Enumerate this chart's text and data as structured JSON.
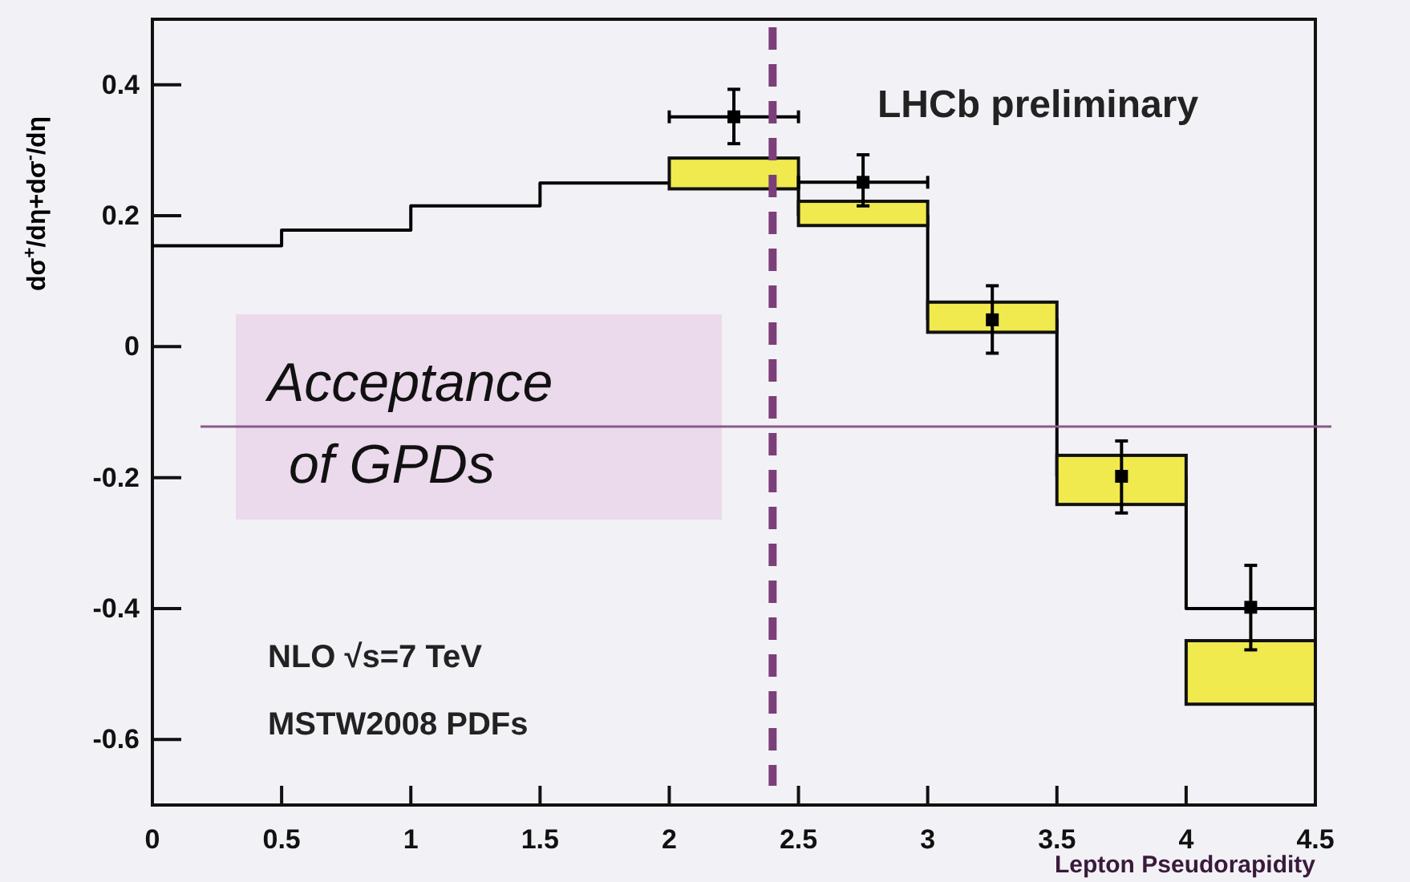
{
  "chart_data": {
    "type": "step",
    "ylabel": "dσ$^{+}$/dη+dσ$^{-}$/dη",
    "xlabel": "Lepton Pseudorapidity",
    "xlim": [
      0,
      4.5
    ],
    "xticks": [
      0,
      0.5,
      1,
      1.5,
      2,
      2.5,
      3,
      3.5,
      4,
      4.5
    ],
    "ylim": [
      -0.7,
      0.5
    ],
    "yticks": [
      -0.6,
      -0.4,
      -0.2,
      0,
      0.2,
      0.4
    ],
    "grid": false,
    "series": [
      {
        "color": "#000000",
        "x": [
          0,
          0.5,
          1,
          1.5,
          2,
          2.5,
          3,
          3.5,
          4,
          4.5
        ],
        "values": [
          0.154,
          0.178,
          0.215,
          0.25,
          0.25,
          0.2,
          0.041,
          -0.198,
          -0.4,
          -0.4
        ]
      },
      {
        "type": "bar",
        "color": "#f0ea4f",
        "x": [
          2.25,
          2.75,
          3.25,
          3.75,
          4.25
        ],
        "base": [
          0.241,
          0.185,
          0.022,
          -0.241,
          -0.546
        ],
        "values": [
          0.047,
          0.037,
          0.046,
          0.075,
          0.097
        ]
      },
      {
        "type": "scatter",
        "color": "#000000",
        "marker": "square",
        "x": [
          2.25,
          2.75,
          3.25,
          3.75,
          4.25
        ],
        "values": [
          0.351,
          0.251,
          0.041,
          -0.198,
          -0.398
        ],
        "errors": [
          [
            0.31,
            0.393
          ],
          [
            0.215,
            0.293
          ],
          [
            -0.01,
            0.093
          ],
          [
            -0.254,
            -0.144
          ],
          [
            -0.463,
            -0.334
          ]
        ],
        "xerrors": [
          0.25,
          0.25,
          null,
          null,
          null
        ]
      }
    ],
    "ref_lines": [
      {
        "axis": "x",
        "value": 2.4,
        "color": "#7b3f7a",
        "line_style": "dashed"
      },
      {
        "axis": "y",
        "value": -0.122,
        "color": "#8a5a8a",
        "line_style": "solid"
      }
    ],
    "annotations": [
      "LHCb preliminary",
      "NLO √s=7 TeV",
      "MSTW2008 PDFs",
      "Acceptance of GPDs"
    ]
  }
}
